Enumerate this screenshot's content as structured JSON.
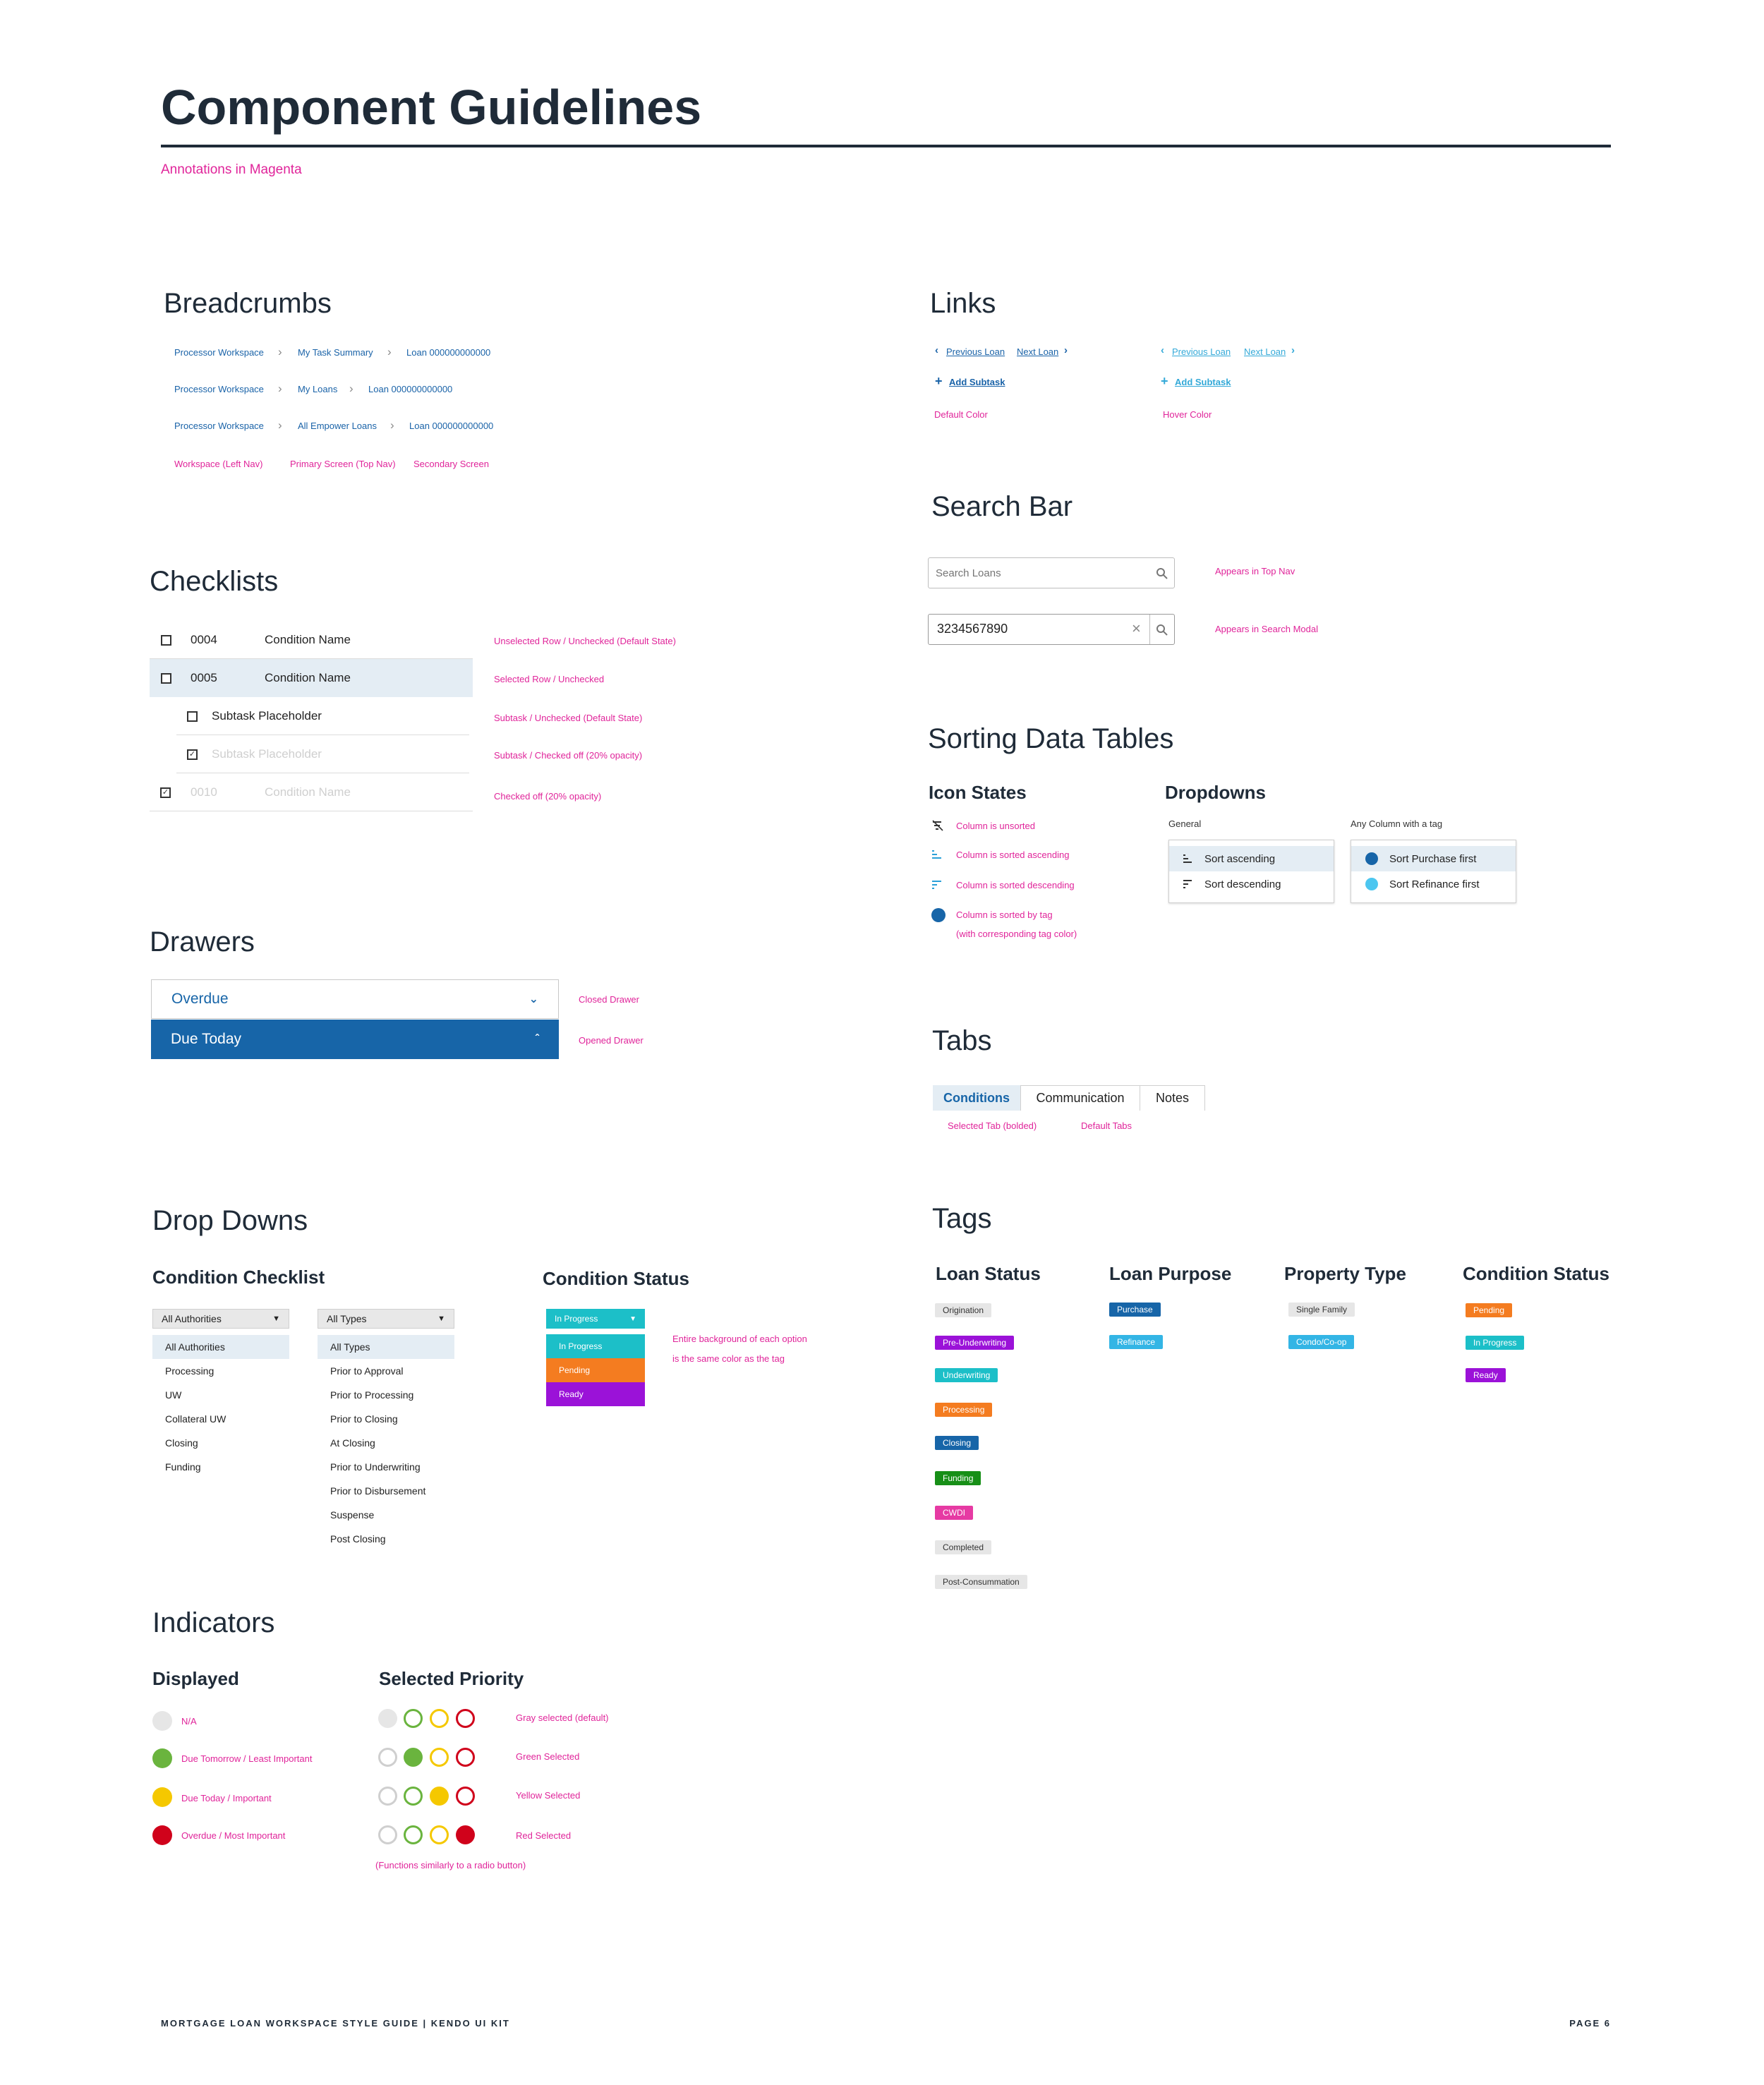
{
  "page": {
    "title": "Component Guidelines",
    "subtitle": "Annotations in Magenta",
    "footer_left": "MORTGAGE LOAN WORKSPACE STYLE GUIDE | KENDO UI KIT",
    "footer_right": "PAGE 6"
  },
  "colors": {
    "title": "#1f2b38",
    "magenta": "#e0249a",
    "link_blue": "#1a63a8",
    "drawer_blue": "#1765a8",
    "selected_row": "#e4edf4"
  },
  "breadcrumbs": {
    "heading": "Breadcrumbs",
    "rows": [
      [
        "Processor Workspace",
        "My Task Summary",
        "Loan 000000000000"
      ],
      [
        "Processor Workspace",
        "My Loans",
        "Loan 000000000000"
      ],
      [
        "Processor Workspace",
        "All Empower Loans",
        "Loan 000000000000"
      ]
    ],
    "annotations": [
      "Workspace (Left Nav)",
      "Primary Screen (Top Nav)",
      "Secondary Screen"
    ]
  },
  "links": {
    "heading": "Links",
    "previous": "Previous Loan",
    "next": "Next Loan",
    "add_subtask": "Add Subtask",
    "default_label": "Default Color",
    "hover_label": "Hover Color"
  },
  "checklists": {
    "heading": "Checklists",
    "rows": [
      {
        "num": "0004",
        "name": "Condition Name",
        "note": "Unselected Row / Unchecked (Default State)"
      },
      {
        "num": "0005",
        "name": "Condition Name",
        "note": "Selected Row / Unchecked"
      },
      {
        "name": "Subtask Placeholder",
        "note": "Subtask / Unchecked (Default State)"
      },
      {
        "name": "Subtask Placeholder",
        "note": "Subtask / Checked off (20% opacity)"
      },
      {
        "num": "0010",
        "name": "Condition Name",
        "note": "Checked off (20% opacity)"
      }
    ]
  },
  "search": {
    "heading": "Search Bar",
    "placeholder": "Search Loans",
    "value": "3234567890",
    "note_top": "Appears in Top Nav",
    "note_modal": "Appears in Search Modal"
  },
  "sorting": {
    "heading": "Sorting Data Tables",
    "icon_states_heading": "Icon States",
    "states": [
      "Column is unsorted",
      "Column is sorted ascending",
      "Column is sorted descending",
      "Column is sorted by tag",
      "(with corresponding tag color)"
    ],
    "dropdowns_heading": "Dropdowns",
    "general_label": "General",
    "tag_label": "Any Column with a tag",
    "general_items": [
      "Sort ascending",
      "Sort descending"
    ],
    "tag_items": [
      "Sort Purchase first",
      "Sort Refinance first"
    ]
  },
  "drawers": {
    "heading": "Drawers",
    "closed_label": "Overdue",
    "open_label": "Due Today",
    "closed_note": "Closed Drawer",
    "open_note": "Opened Drawer"
  },
  "tabs": {
    "heading": "Tabs",
    "items": [
      "Conditions",
      "Communication",
      "Notes"
    ],
    "selected_note": "Selected Tab (bolded)",
    "default_note": "Default Tabs"
  },
  "dropdowns": {
    "heading": "Drop Downs",
    "checklist_heading": "Condition Checklist",
    "authorities_value": "All Authorities",
    "authorities_options": [
      "All Authorities",
      "Processing",
      "UW",
      "Collateral UW",
      "Closing",
      "Funding"
    ],
    "types_value": "All Types",
    "types_options": [
      "All Types",
      "Prior to Approval",
      "Prior to Processing",
      "Prior to Closing",
      "At Closing",
      "Prior to Underwriting",
      "Prior to Disbursement",
      "Suspense",
      "Post Closing"
    ],
    "status_heading": "Condition Status",
    "status_value": "In Progress",
    "status_options": [
      "In Progress",
      "Pending",
      "Ready"
    ],
    "status_note_1": "Entire background of each option",
    "status_note_2": "is the same color as the tag"
  },
  "tags": {
    "heading": "Tags",
    "loan_status_heading": "Loan Status",
    "loan_status": [
      "Origination",
      "Pre-Underwriting",
      "Underwriting",
      "Processing",
      "Closing",
      "Funding",
      "CWDI",
      "Completed",
      "Post-Consummation"
    ],
    "loan_purpose_heading": "Loan Purpose",
    "loan_purpose": [
      "Purchase",
      "Refinance"
    ],
    "property_type_heading": "Property Type",
    "property_type": [
      "Single Family",
      "Condo/Co-op"
    ],
    "condition_status_heading": "Condition Status",
    "condition_status": [
      "Pending",
      "In Progress",
      "Ready"
    ]
  },
  "indicators": {
    "heading": "Indicators",
    "displayed_heading": "Displayed",
    "displayed": [
      "N/A",
      "Due Tomorrow / Least Important",
      "Due Today / Important",
      "Overdue / Most Important"
    ],
    "priority_heading": "Selected Priority",
    "priority_notes": [
      "Gray selected (default)",
      "Green Selected",
      "Yellow Selected",
      "Red Selected"
    ],
    "priority_footnote": "(Functions similarly to a radio button)"
  }
}
